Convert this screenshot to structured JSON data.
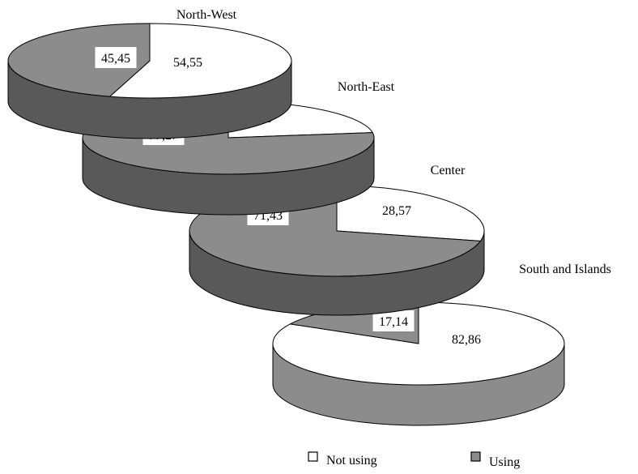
{
  "chart_data": {
    "type": "pie",
    "legend": {
      "placement": "bottom",
      "entries": [
        {
          "name": "Not using",
          "color": "#ffffff"
        },
        {
          "name": "Using",
          "color": "#8c8c8c"
        }
      ]
    },
    "pies": [
      {
        "title": "North-West",
        "slices": [
          {
            "series": "Not using",
            "value": 54.55,
            "label": "54,55"
          },
          {
            "series": "Using",
            "value": 45.45,
            "label": "45,45"
          }
        ]
      },
      {
        "title": "North-East",
        "slices": [
          {
            "series": "Not using",
            "value": 22.73,
            "label": "22,73"
          },
          {
            "series": "Using",
            "value": 77.27,
            "label": "77,27"
          }
        ]
      },
      {
        "title": "Center",
        "slices": [
          {
            "series": "Not using",
            "value": 28.57,
            "label": "28,57"
          },
          {
            "series": "Using",
            "value": 71.43,
            "label": "71,43"
          }
        ]
      },
      {
        "title": "South and Islands",
        "slices": [
          {
            "series": "Not using",
            "value": 82.86,
            "label": "82,86"
          },
          {
            "series": "Using",
            "value": 17.14,
            "label": "17,14"
          }
        ]
      }
    ],
    "colors": {
      "not_using_top": "#ffffff",
      "using_top": "#8c8c8c",
      "side_dark": "#595959",
      "side_light": "#8c8c8c",
      "outline": "#000000"
    }
  }
}
